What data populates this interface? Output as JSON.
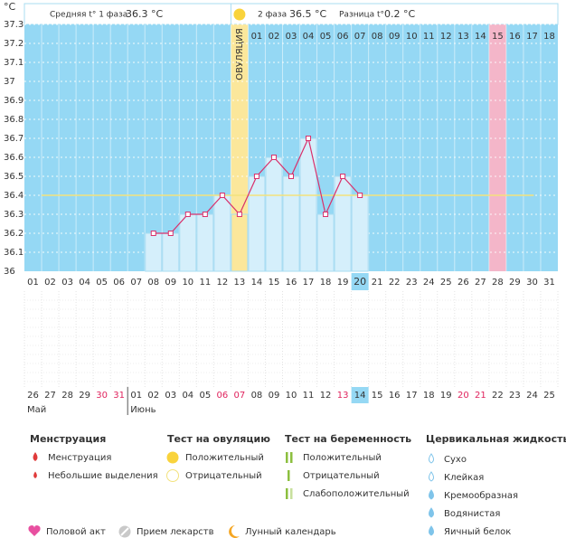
{
  "chart_data": {
    "type": "line",
    "y_unit": "°C",
    "header": {
      "phase1_label": "Средняя t° 1 фаза",
      "phase1_value": "36.3 °C",
      "phase2_label": "2 фаза",
      "phase2_value": "36.5 °C",
      "diff_label": "Разница t°",
      "diff_value": "0.2 °C"
    },
    "categories": [
      "01",
      "02",
      "03",
      "04",
      "05",
      "06",
      "07",
      "08",
      "09",
      "10",
      "11",
      "12",
      "13",
      "14",
      "15",
      "16",
      "17",
      "18",
      "19",
      "20",
      "21",
      "22",
      "23",
      "24",
      "25",
      "26",
      "27",
      "28",
      "29",
      "30",
      "31"
    ],
    "values": [
      null,
      null,
      null,
      null,
      null,
      null,
      null,
      36.2,
      36.2,
      36.3,
      36.3,
      36.4,
      36.3,
      36.5,
      36.6,
      36.5,
      36.7,
      36.3,
      36.5,
      36.4,
      null,
      null,
      null,
      null,
      null,
      null,
      null,
      null,
      null,
      null,
      null
    ],
    "cycle_days": [
      null,
      null,
      null,
      null,
      null,
      null,
      null,
      null,
      null,
      null,
      null,
      null,
      null,
      "01",
      "02",
      "03",
      "04",
      "05",
      "06",
      "07",
      "08",
      "09",
      "10",
      "11",
      "12",
      "13",
      "14",
      "15",
      "16",
      "17",
      "18"
    ],
    "color": "#d9306b",
    "coverline": 36.4,
    "coverline_color": "#f3e27c",
    "ovulation_day": "13",
    "ovulation_label": "ОВУЛЯЦИЯ",
    "ovulation_color": "#fbe79b",
    "expected_period_day": "28",
    "expected_period_color": "#f4b6c9",
    "today": "20",
    "background_color": "#95d8f4",
    "bar_color": "#d5effb",
    "ylim": [
      36,
      37.3
    ],
    "yticks": [
      36,
      36.1,
      36.2,
      36.3,
      36.4,
      36.5,
      36.6,
      36.7,
      36.8,
      36.9,
      37,
      37.1,
      37.2,
      37.3
    ],
    "grid": true,
    "dates": [
      {
        "label": "26",
        "month": "Май"
      },
      {
        "label": "27"
      },
      {
        "label": "28"
      },
      {
        "label": "29"
      },
      {
        "label": "30",
        "color": "#e0245e"
      },
      {
        "label": "31",
        "color": "#e0245e"
      },
      {
        "label": "01",
        "month": "Июнь"
      },
      {
        "label": "02"
      },
      {
        "label": "03"
      },
      {
        "label": "04"
      },
      {
        "label": "05"
      },
      {
        "label": "06",
        "color": "#e0245e"
      },
      {
        "label": "07",
        "color": "#e0245e"
      },
      {
        "label": "08"
      },
      {
        "label": "09"
      },
      {
        "label": "10"
      },
      {
        "label": "11"
      },
      {
        "label": "12"
      },
      {
        "label": "13",
        "color": "#e0245e"
      },
      {
        "label": "14"
      },
      {
        "label": "15"
      },
      {
        "label": "16"
      },
      {
        "label": "17"
      },
      {
        "label": "18"
      },
      {
        "label": "19"
      },
      {
        "label": "20",
        "color": "#e0245e"
      },
      {
        "label": "21",
        "color": "#e0245e"
      },
      {
        "label": "22"
      },
      {
        "label": "23"
      },
      {
        "label": "24"
      },
      {
        "label": "25"
      }
    ]
  },
  "legend": {
    "sections": [
      {
        "title": "Менструация",
        "items": [
          "Менструация",
          "Небольшие выделения"
        ]
      },
      {
        "title": "Тест на овуляцию",
        "items": [
          "Положительный",
          "Отрицательный"
        ]
      },
      {
        "title": "Тест на беременность",
        "items": [
          "Положительный",
          "Отрицательный",
          "Слабоположительный"
        ]
      },
      {
        "title": "Цервикальная жидкость",
        "items": [
          "Сухо",
          "Клейкая",
          "Кремообразная",
          "Водянистая",
          "Яичный белок"
        ]
      }
    ],
    "extras": [
      "Половой акт",
      "Прием лекарств",
      "Лунный календарь"
    ]
  }
}
